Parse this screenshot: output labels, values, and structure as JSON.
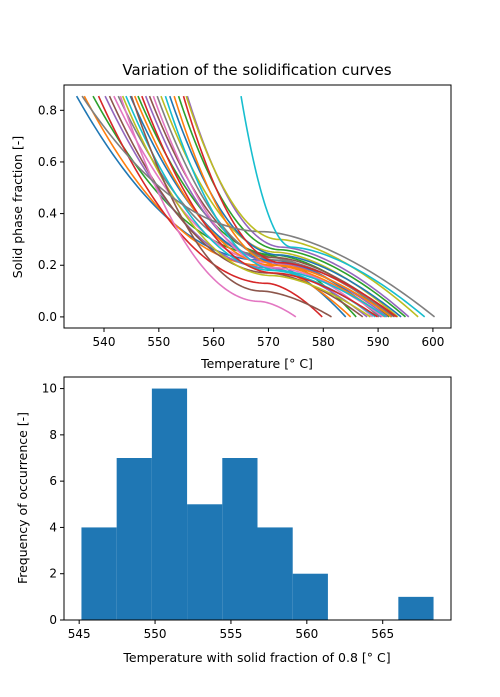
{
  "chart_data": [
    {
      "type": "line",
      "title": "Variation of the solidification curves",
      "xlabel": "Temperature [° C]",
      "ylabel": "Solid phase fraction [-]",
      "xlim": [
        532.7,
        603.3
      ],
      "ylim": [
        -0.043,
        0.898
      ],
      "xticks": [
        540,
        550,
        560,
        570,
        580,
        590,
        600
      ],
      "yticks": [
        0.0,
        0.2,
        0.4,
        0.6,
        0.8
      ],
      "ytick_labels": [
        "0.0",
        "0.2",
        "0.4",
        "0.6",
        "0.8"
      ],
      "grid": false,
      "colors": [
        "#1f77b4",
        "#ff7f0e",
        "#2ca02c",
        "#d62728",
        "#9467bd",
        "#8c564b",
        "#e377c2",
        "#7f7f7f",
        "#bcbd22",
        "#17becf"
      ],
      "curve_template": {
        "fs_start": 0.855,
        "curve_shape": "fs = fs_knee + (0.855 - fs_knee) * (1 - (T - T0)/(Tk - T0))^2 for T <= Tk; fs = fs_knee * (1 - ((T - Tk)/(Tend - Tk))^1.6) for T > Tk"
      },
      "series": [
        {
          "T_start": 535.0,
          "T_knee": 568.6,
          "T_end": 584.1,
          "fs_knee": 0.22
        },
        {
          "T_start": 536.4,
          "T_knee": 568.9,
          "T_end": 585.0,
          "fs_knee": 0.2
        },
        {
          "T_start": 538.0,
          "T_knee": 569.5,
          "T_end": 586.0,
          "fs_knee": 0.24
        },
        {
          "T_start": 539.0,
          "T_knee": 569.8,
          "T_end": 579.8,
          "fs_knee": 0.13
        },
        {
          "T_start": 540.2,
          "T_knee": 570.0,
          "T_end": 588.0,
          "fs_knee": 0.19
        },
        {
          "T_start": 541.0,
          "T_knee": 570.2,
          "T_end": 587.2,
          "fs_knee": 0.17
        },
        {
          "T_start": 541.8,
          "T_knee": 570.4,
          "T_end": 589.0,
          "fs_knee": 0.21
        },
        {
          "T_start": 542.6,
          "T_knee": 570.6,
          "T_end": 590.2,
          "fs_knee": 0.23
        },
        {
          "T_start": 543.4,
          "T_knee": 570.7,
          "T_end": 588.6,
          "fs_knee": 0.16
        },
        {
          "T_start": 544.0,
          "T_knee": 570.8,
          "T_end": 589.5,
          "fs_knee": 0.18
        },
        {
          "T_start": 544.8,
          "T_knee": 570.9,
          "T_end": 590.6,
          "fs_knee": 0.22
        },
        {
          "T_start": 545.6,
          "T_knee": 571.0,
          "T_end": 591.2,
          "fs_knee": 0.2
        },
        {
          "T_start": 546.2,
          "T_knee": 571.1,
          "T_end": 592.0,
          "fs_knee": 0.24
        },
        {
          "T_start": 546.9,
          "T_knee": 571.2,
          "T_end": 589.9,
          "fs_knee": 0.17
        },
        {
          "T_start": 547.6,
          "T_knee": 571.3,
          "T_end": 591.7,
          "fs_knee": 0.21
        },
        {
          "T_start": 548.3,
          "T_knee": 571.4,
          "T_end": 593.0,
          "fs_knee": 0.23
        },
        {
          "T_start": 549.0,
          "T_knee": 571.5,
          "T_end": 590.8,
          "fs_knee": 0.19
        },
        {
          "T_start": 549.7,
          "T_knee": 571.6,
          "T_end": 592.6,
          "fs_knee": 0.22
        },
        {
          "T_start": 550.4,
          "T_knee": 571.7,
          "T_end": 593.6,
          "fs_knee": 0.25
        },
        {
          "T_start": 551.2,
          "T_knee": 571.8,
          "T_end": 591.4,
          "fs_knee": 0.18
        },
        {
          "T_start": 552.0,
          "T_knee": 571.9,
          "T_end": 594.2,
          "fs_knee": 0.24
        },
        {
          "T_start": 552.8,
          "T_knee": 572.0,
          "T_end": 592.4,
          "fs_knee": 0.2
        },
        {
          "T_start": 553.6,
          "T_knee": 572.2,
          "T_end": 595.0,
          "fs_knee": 0.26
        },
        {
          "T_start": 554.5,
          "T_knee": 572.4,
          "T_end": 593.4,
          "fs_knee": 0.21
        },
        {
          "T_start": 555.2,
          "T_knee": 572.6,
          "T_end": 595.6,
          "fs_knee": 0.27
        },
        {
          "T_start": 545.0,
          "T_knee": 568.8,
          "T_end": 581.5,
          "fs_knee": 0.1
        },
        {
          "T_start": 543.0,
          "T_knee": 568.4,
          "T_end": 575.0,
          "fs_knee": 0.06
        },
        {
          "T_start": 536.0,
          "T_knee": 569.2,
          "T_end": 600.3,
          "fs_knee": 0.33
        },
        {
          "T_start": 555.0,
          "T_knee": 572.0,
          "T_end": 597.3,
          "fs_knee": 0.3
        },
        {
          "T_start": 565.0,
          "T_knee": 574.3,
          "T_end": 598.5,
          "fs_knee": 0.27
        }
      ]
    },
    {
      "type": "bar",
      "subtype": "histogram",
      "title": "",
      "xlabel": "Temperature with solid fraction of 0.8 [° C]",
      "ylabel": "Frequency of occurrence [-]",
      "xlim": [
        544.0,
        569.5
      ],
      "ylim": [
        0,
        10.5
      ],
      "xticks": [
        545,
        550,
        555,
        560,
        565
      ],
      "yticks": [
        0,
        2,
        4,
        6,
        8,
        10
      ],
      "bin_edges": [
        545.15,
        547.47,
        549.79,
        552.11,
        554.43,
        556.75,
        559.07,
        561.39,
        563.71,
        566.03,
        568.35
      ],
      "values": [
        4,
        7,
        10,
        5,
        7,
        4,
        2,
        0,
        0,
        1
      ],
      "bar_color": "#1f77b4",
      "grid": false
    }
  ]
}
